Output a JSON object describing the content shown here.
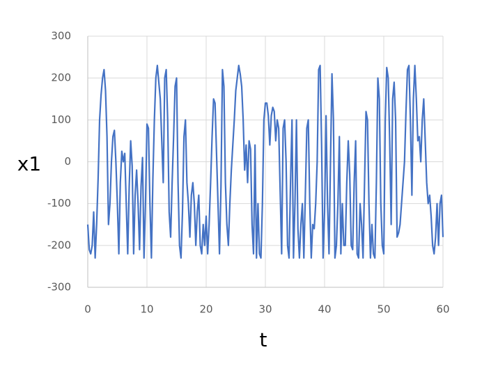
{
  "chart_data": {
    "type": "line",
    "x_label": "t",
    "y_label": "x1",
    "x": [
      0,
      0.25,
      0.5,
      0.75,
      1,
      1.25,
      1.5,
      1.75,
      2,
      2.25,
      2.5,
      2.75,
      3,
      3.25,
      3.5,
      3.75,
      4,
      4.25,
      4.5,
      4.75,
      5,
      5.25,
      5.5,
      5.75,
      6,
      6.25,
      6.5,
      6.75,
      7,
      7.25,
      7.5,
      7.75,
      8,
      8.25,
      8.5,
      8.75,
      9,
      9.25,
      9.5,
      9.75,
      10,
      10.25,
      10.5,
      10.75,
      11,
      11.25,
      11.5,
      11.75,
      12,
      12.25,
      12.5,
      12.75,
      13,
      13.25,
      13.5,
      13.75,
      14,
      14.25,
      14.5,
      14.75,
      15,
      15.25,
      15.5,
      15.75,
      16,
      16.25,
      16.5,
      16.75,
      17,
      17.25,
      17.5,
      17.75,
      18,
      18.25,
      18.5,
      18.75,
      19,
      19.25,
      19.5,
      19.75,
      20,
      20.25,
      20.5,
      20.75,
      21,
      21.25,
      21.5,
      21.75,
      22,
      22.25,
      22.5,
      22.75,
      23,
      23.25,
      23.5,
      23.75,
      24,
      24.25,
      24.5,
      24.75,
      25,
      25.25,
      25.5,
      25.75,
      26,
      26.25,
      26.5,
      26.75,
      27,
      27.25,
      27.5,
      27.75,
      28,
      28.25,
      28.5,
      28.75,
      29,
      29.25,
      29.5,
      29.75,
      30,
      30.25,
      30.5,
      30.75,
      31,
      31.25,
      31.5,
      31.75,
      32,
      32.25,
      32.5,
      32.75,
      33,
      33.25,
      33.5,
      33.75,
      34,
      34.25,
      34.5,
      34.75,
      35,
      35.25,
      35.5,
      35.75,
      36,
      36.25,
      36.5,
      36.75,
      37,
      37.25,
      37.5,
      37.75,
      38,
      38.25,
      38.5,
      38.75,
      39,
      39.25,
      39.5,
      39.75,
      40,
      40.25,
      40.5,
      40.75,
      41,
      41.25,
      41.5,
      41.75,
      42,
      42.25,
      42.5,
      42.75,
      43,
      43.25,
      43.5,
      43.75,
      44,
      44.25,
      44.5,
      44.75,
      45,
      45.25,
      45.5,
      45.75,
      46,
      46.25,
      46.5,
      46.75,
      47,
      47.25,
      47.5,
      47.75,
      48,
      48.25,
      48.5,
      48.75,
      49,
      49.25,
      49.5,
      49.75,
      50,
      50.25,
      50.5,
      50.75,
      51,
      51.25,
      51.5,
      51.75,
      52,
      52.25,
      52.5,
      52.75,
      53,
      53.25,
      53.5,
      53.75,
      54,
      54.25,
      54.5,
      54.75,
      55,
      55.25,
      55.5,
      55.75,
      56,
      56.25,
      56.5,
      56.75,
      57,
      57.25,
      57.5,
      57.75,
      58,
      58.25,
      58.5,
      58.75,
      59,
      59.25,
      59.5,
      59.75,
      60
    ],
    "series": [
      {
        "color": "#4472c4",
        "values": [
          -150,
          -210,
          -220,
          -200,
          -120,
          -230,
          -150,
          -40,
          100,
          160,
          200,
          220,
          170,
          60,
          -150,
          -100,
          0,
          60,
          75,
          0,
          -100,
          -220,
          -50,
          25,
          0,
          20,
          -100,
          -220,
          -60,
          50,
          -10,
          -220,
          -80,
          -20,
          -100,
          -210,
          -60,
          10,
          -230,
          -100,
          90,
          80,
          -100,
          -230,
          -40,
          100,
          200,
          230,
          190,
          150,
          50,
          -50,
          200,
          220,
          100,
          -120,
          -180,
          -50,
          60,
          180,
          200,
          -50,
          -200,
          -230,
          -120,
          60,
          100,
          -50,
          -100,
          -180,
          -80,
          -50,
          -100,
          -200,
          -120,
          -80,
          -200,
          -220,
          -150,
          -200,
          -130,
          -220,
          -150,
          -50,
          60,
          150,
          140,
          20,
          -100,
          -220,
          -60,
          220,
          180,
          -50,
          -150,
          -200,
          -100,
          -20,
          40,
          100,
          170,
          200,
          230,
          210,
          180,
          100,
          -20,
          40,
          -50,
          50,
          30,
          -150,
          -220,
          40,
          -230,
          -100,
          -220,
          -230,
          -100,
          100,
          140,
          140,
          110,
          40,
          110,
          130,
          120,
          50,
          100,
          80,
          -70,
          -220,
          80,
          100,
          0,
          -200,
          -230,
          -50,
          100,
          -230,
          -100,
          100,
          -160,
          -230,
          -150,
          -100,
          -230,
          -80,
          80,
          100,
          -100,
          -230,
          -150,
          -160,
          -100,
          0,
          220,
          230,
          40,
          -230,
          -120,
          110,
          -100,
          -220,
          0,
          210,
          100,
          -230,
          -200,
          -100,
          60,
          -220,
          -100,
          -200,
          -200,
          -50,
          50,
          -30,
          -200,
          -210,
          -50,
          50,
          -220,
          -230,
          -100,
          -150,
          -230,
          -50,
          120,
          100,
          -100,
          -230,
          -150,
          -220,
          -230,
          -50,
          200,
          150,
          -100,
          -200,
          -220,
          100,
          225,
          200,
          50,
          -150,
          150,
          190,
          100,
          -180,
          -170,
          -150,
          -100,
          -50,
          0,
          120,
          220,
          230,
          100,
          -80,
          150,
          230,
          150,
          50,
          60,
          0,
          100,
          150,
          50,
          -50,
          -100,
          -80,
          -130,
          -200,
          -220,
          -180,
          -100,
          -200,
          -100,
          -80,
          -180
        ]
      }
    ],
    "xlim": [
      0,
      60
    ],
    "xticks": [
      0,
      10,
      20,
      30,
      40,
      50,
      60
    ],
    "ylim": [
      -300,
      300
    ],
    "yticks": [
      -300,
      -200,
      -100,
      0,
      100,
      200,
      300
    ],
    "grid": true
  }
}
